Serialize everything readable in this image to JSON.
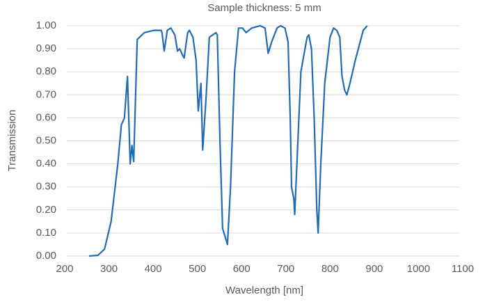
{
  "chart_data": {
    "type": "line",
    "title": "Sample thickness: 5 mm",
    "x_label": "Wavelength [nm]",
    "y_label": "Transmission",
    "x": [
      255,
      275,
      290,
      305,
      320,
      328,
      335,
      342,
      348,
      352,
      356,
      364,
      380,
      402,
      418,
      420,
      425,
      432,
      440,
      449,
      455,
      460,
      467,
      470,
      478,
      482,
      490,
      497,
      502,
      508,
      512,
      520,
      527,
      542,
      545,
      551,
      557,
      568,
      575,
      584,
      593,
      602,
      610,
      623,
      642,
      653,
      660,
      668,
      680,
      688,
      698,
      705,
      710,
      713,
      718,
      720,
      725,
      734,
      748,
      752,
      758,
      764,
      770,
      773,
      779,
      788,
      800,
      808,
      815,
      822,
      827,
      833,
      838,
      845,
      857,
      868,
      875,
      884
    ],
    "series": [
      {
        "name": "Transmission",
        "color": "#1f6bb5",
        "values": [
          0,
          0.003,
          0.03,
          0.15,
          0.4,
          0.57,
          0.6,
          0.78,
          0.4,
          0.48,
          0.41,
          0.94,
          0.97,
          0.98,
          0.98,
          0.97,
          0.89,
          0.98,
          0.99,
          0.96,
          0.89,
          0.9,
          0.87,
          0.86,
          0.97,
          0.98,
          0.95,
          0.85,
          0.63,
          0.75,
          0.46,
          0.7,
          0.95,
          0.97,
          0.96,
          0.5,
          0.12,
          0.05,
          0.3,
          0.8,
          0.99,
          0.99,
          0.97,
          0.99,
          1.0,
          0.99,
          0.88,
          0.93,
          0.99,
          1.0,
          0.99,
          0.93,
          0.6,
          0.3,
          0.25,
          0.18,
          0.4,
          0.8,
          0.95,
          0.96,
          0.9,
          0.6,
          0.2,
          0.1,
          0.4,
          0.75,
          0.95,
          0.99,
          0.98,
          0.95,
          0.78,
          0.72,
          0.7,
          0.75,
          0.85,
          0.93,
          0.98,
          1.0
        ]
      }
    ],
    "xlim": [
      200,
      1100
    ],
    "xticks": [
      200,
      300,
      400,
      500,
      600,
      700,
      800,
      900,
      1000,
      1100
    ],
    "ylim": [
      0,
      1
    ],
    "yticks": [
      {
        "value": 0,
        "label": "0.00"
      },
      {
        "value": 0.1,
        "label": "0.10"
      },
      {
        "value": 0.2,
        "label": "0.20"
      },
      {
        "value": 0.3,
        "label": "0.30"
      },
      {
        "value": 0.4,
        "label": "0.40"
      },
      {
        "value": 0.5,
        "label": "0.50"
      },
      {
        "value": 0.6,
        "label": "0.60"
      },
      {
        "value": 0.7,
        "label": "0.70"
      },
      {
        "value": 0.8,
        "label": "0.80"
      },
      {
        "value": 0.9,
        "label": "0.90"
      },
      {
        "value": 1,
        "label": "1.00"
      }
    ],
    "grid": true
  }
}
